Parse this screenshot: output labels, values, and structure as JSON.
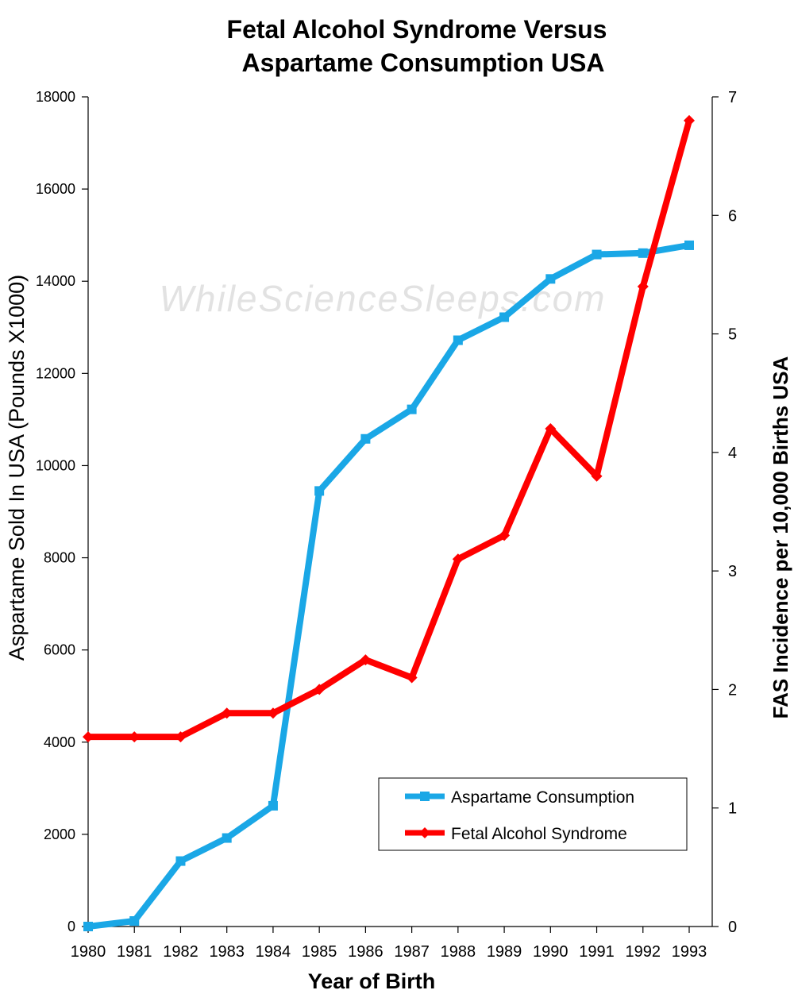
{
  "chart_data": {
    "type": "line",
    "title_line1": "Fetal Alcohol Syndrome Versus",
    "title_line2": "Aspartame Consumption USA",
    "xlabel": "Year of Birth",
    "ylabel_left": "Aspartame Sold In USA  (Pounds X1000)",
    "ylabel_right": "FAS  Incidence per 10,000 Births USA",
    "watermark": "WhileScienceSleeps.com",
    "x": [
      "1980",
      "1981",
      "1982",
      "1983",
      "1984",
      "1985",
      "1986",
      "1987",
      "1988",
      "1989",
      "1990",
      "1991",
      "1992",
      "1993"
    ],
    "ylim_left": [
      0,
      18000
    ],
    "ylim_right": [
      0,
      7
    ],
    "left_ticks": [
      "0",
      "2000",
      "4000",
      "6000",
      "8000",
      "10000",
      "12000",
      "14000",
      "16000",
      "18000"
    ],
    "right_ticks": [
      "0",
      "1",
      "2",
      "3",
      "4",
      "5",
      "6",
      "7"
    ],
    "grid": false,
    "legend_position": "bottom-right",
    "series": [
      {
        "name": "Aspartame Consumption",
        "axis": "left",
        "color": "#1aa7e6",
        "marker": "square",
        "values": [
          0,
          120,
          1420,
          1920,
          2620,
          9450,
          10580,
          11220,
          12720,
          13220,
          14050,
          14580,
          14610,
          14780
        ]
      },
      {
        "name": "Fetal Alcohol Syndrome",
        "axis": "right",
        "color": "#ff0000",
        "marker": "diamond",
        "values": [
          1.6,
          1.6,
          1.6,
          1.8,
          1.8,
          2.0,
          2.25,
          2.1,
          3.1,
          3.3,
          4.2,
          3.8,
          5.4,
          6.8
        ]
      }
    ]
  }
}
